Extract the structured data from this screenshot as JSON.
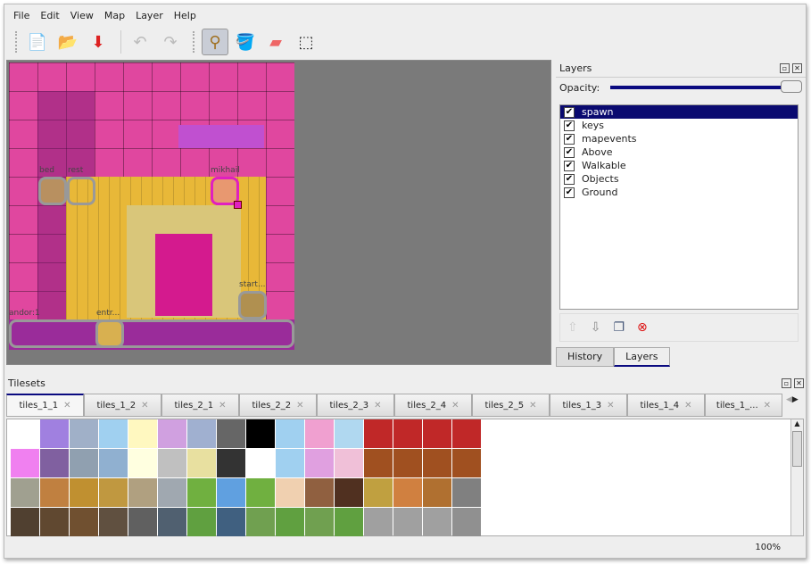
{
  "menu": [
    "File",
    "Edit",
    "View",
    "Map",
    "Layer",
    "Help"
  ],
  "toolbar": [
    {
      "name": "new-icon",
      "g": "📄"
    },
    {
      "name": "open-icon",
      "g": "📂"
    },
    {
      "name": "save-icon",
      "g": "⬇"
    },
    {
      "name": "undo-icon",
      "g": "↶"
    },
    {
      "name": "redo-icon",
      "g": "↷"
    },
    {
      "name": "stamp-brush-icon",
      "g": "⚲"
    },
    {
      "name": "bucket-fill-icon",
      "g": "🪣"
    },
    {
      "name": "eraser-icon",
      "g": "▰"
    },
    {
      "name": "rect-select-icon",
      "g": "⬚"
    }
  ],
  "map": {
    "objects": [
      {
        "label": "bed"
      },
      {
        "label": "rest"
      },
      {
        "label": "mikhail"
      },
      {
        "label": "start..."
      },
      {
        "label": "andor:1"
      },
      {
        "label": "entr..."
      }
    ],
    "selected_color": "#e020c0"
  },
  "layers": {
    "title": "Layers",
    "opacity_label": "Opacity:",
    "opacity": 1.0,
    "items": [
      "spawn",
      "keys",
      "mapevents",
      "Above",
      "Walkable",
      "Objects",
      "Ground"
    ],
    "selected": "spawn"
  },
  "bottom_tabs": [
    "History",
    "Layers"
  ],
  "tilesets": {
    "title": "Tilesets",
    "tabs": [
      "tiles_1_1",
      "tiles_1_2",
      "tiles_2_1",
      "tiles_2_2",
      "tiles_2_3",
      "tiles_2_4",
      "tiles_2_5",
      "tiles_1_3",
      "tiles_1_4",
      "tiles_1_..."
    ]
  },
  "status": {
    "zoom": "100%"
  },
  "colors": {
    "accent": "#0a0a80",
    "map_bg": "#e0479f",
    "floor": "#e8b838"
  }
}
